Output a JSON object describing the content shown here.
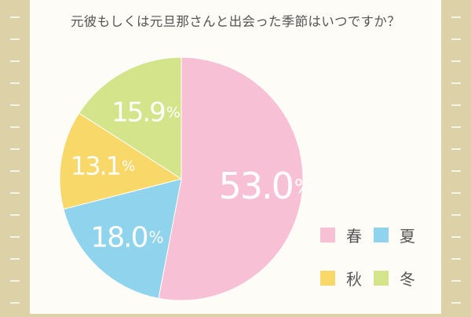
{
  "title": "元彼もしくは元旦那さんと出会った季節はいつですか？",
  "colors": {
    "background_side": "#ddd1a8",
    "panel": "#fdfcf7",
    "dash": "#ffffff"
  },
  "chart_data": {
    "type": "pie",
    "title": "元彼もしくは元旦那さんと出会った季節はいつですか？",
    "start_angle_deg": 0,
    "direction": "clockwise",
    "slices": [
      {
        "label": "春",
        "value": 53.0,
        "display": "53.0",
        "color": "#f7c0d5"
      },
      {
        "label": "夏",
        "value": 18.0,
        "display": "18.0",
        "color": "#8fd3ec"
      },
      {
        "label": "秋",
        "value": 13.1,
        "display": "13.1",
        "color": "#f8d868"
      },
      {
        "label": "冬",
        "value": 15.9,
        "display": "15.9",
        "color": "#d3e48a"
      }
    ],
    "percent_sign": "%",
    "legend": {
      "position": "bottom-right",
      "columns": 2
    }
  }
}
